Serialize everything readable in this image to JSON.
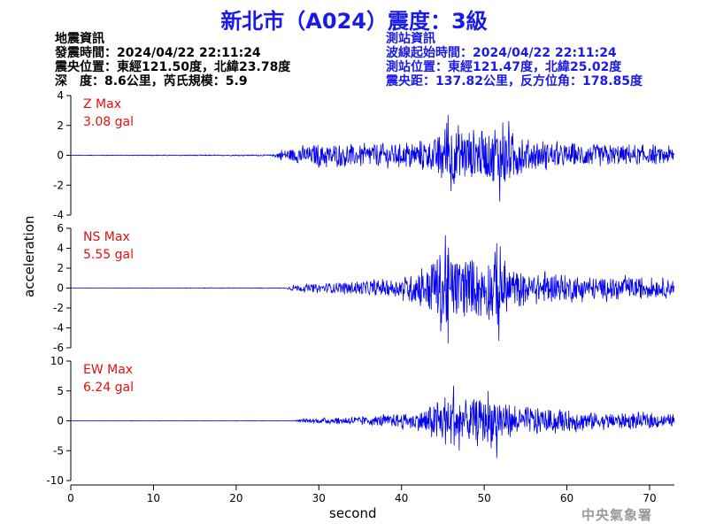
{
  "title": "新北市（A024）震度：3級",
  "quake_info": {
    "heading": "地震資訊",
    "time": "發震時間：2024/04/22 22:11:24",
    "epicenter": "震央位置：東經121.50度，北緯23.78度",
    "depth_magnitude": "深　度：8.6公里，芮氏規模：5.9"
  },
  "station_info": {
    "heading": "測站資訊",
    "wave_time": "波線起始時間：2024/04/22 22:11:24",
    "station_location": "測站位置：東經121.47度，北緯25.02度",
    "distance": "震央距：137.82公里，反方位角：178.85度"
  },
  "agency": "中央氣象署",
  "colors": {
    "title": "#1a1ae6",
    "trace": "#0000ee",
    "max_label": "#e01010",
    "axis": "#000000"
  },
  "chart_data": {
    "type": "line",
    "xlabel": "second",
    "ylabel": "acceleration",
    "xlim": [
      0,
      73
    ],
    "xticks": [
      0,
      10,
      20,
      30,
      40,
      50,
      60,
      70
    ],
    "grid": false,
    "panels": [
      {
        "name": "Z",
        "max_label": "Z Max",
        "max_value": "3.08 gal",
        "ylim": [
          -4,
          4
        ],
        "yticks": [
          -4,
          -2,
          0,
          2,
          4
        ],
        "envelope": [
          [
            0,
            0.02
          ],
          [
            24.5,
            0.05
          ],
          [
            25.5,
            0.45
          ],
          [
            30,
            0.9
          ],
          [
            40,
            0.9
          ],
          [
            44,
            1.4
          ],
          [
            45.5,
            2.8
          ],
          [
            48,
            2.1
          ],
          [
            50,
            1.8
          ],
          [
            52,
            2.9
          ],
          [
            55,
            1.3
          ],
          [
            60,
            0.9
          ],
          [
            65,
            0.8
          ],
          [
            73,
            0.7
          ]
        ],
        "peaks": [
          [
            45.6,
            2.7
          ],
          [
            46.0,
            -2.4
          ],
          [
            51.9,
            -3.08
          ],
          [
            53.0,
            2.3
          ]
        ]
      },
      {
        "name": "NS",
        "max_label": "NS Max",
        "max_value": "5.55 gal",
        "ylim": [
          -6,
          6
        ],
        "yticks": [
          -6,
          -4,
          -2,
          0,
          2,
          4,
          6
        ],
        "envelope": [
          [
            0,
            0.02
          ],
          [
            26,
            0.04
          ],
          [
            27,
            0.4
          ],
          [
            35,
            0.8
          ],
          [
            40,
            1.2
          ],
          [
            43,
            2.8
          ],
          [
            45,
            4.8
          ],
          [
            47,
            3.5
          ],
          [
            50,
            3.2
          ],
          [
            52,
            4.5
          ],
          [
            54,
            2.2
          ],
          [
            60,
            1.6
          ],
          [
            65,
            1.4
          ],
          [
            73,
            1.1
          ]
        ],
        "peaks": [
          [
            45.3,
            5.3
          ],
          [
            45.6,
            -5.55
          ],
          [
            51.5,
            4.5
          ],
          [
            51.8,
            -5.3
          ]
        ]
      },
      {
        "name": "EW",
        "max_label": "EW Max",
        "max_value": "6.24 gal",
        "ylim": [
          -10,
          10
        ],
        "yticks": [
          -10,
          -5,
          0,
          5,
          10
        ],
        "envelope": [
          [
            0,
            0.03
          ],
          [
            27,
            0.05
          ],
          [
            28,
            0.4
          ],
          [
            36,
            0.9
          ],
          [
            41,
            1.6
          ],
          [
            44,
            3.5
          ],
          [
            46,
            5.5
          ],
          [
            48,
            4.0
          ],
          [
            51,
            5.0
          ],
          [
            53,
            3.2
          ],
          [
            58,
            2.6
          ],
          [
            63,
            1.8
          ],
          [
            68,
            1.6
          ],
          [
            73,
            1.2
          ]
        ],
        "peaks": [
          [
            46.3,
            5.9
          ],
          [
            47.0,
            -5.0
          ],
          [
            51.5,
            -6.24
          ],
          [
            50.5,
            5.0
          ]
        ]
      }
    ]
  }
}
